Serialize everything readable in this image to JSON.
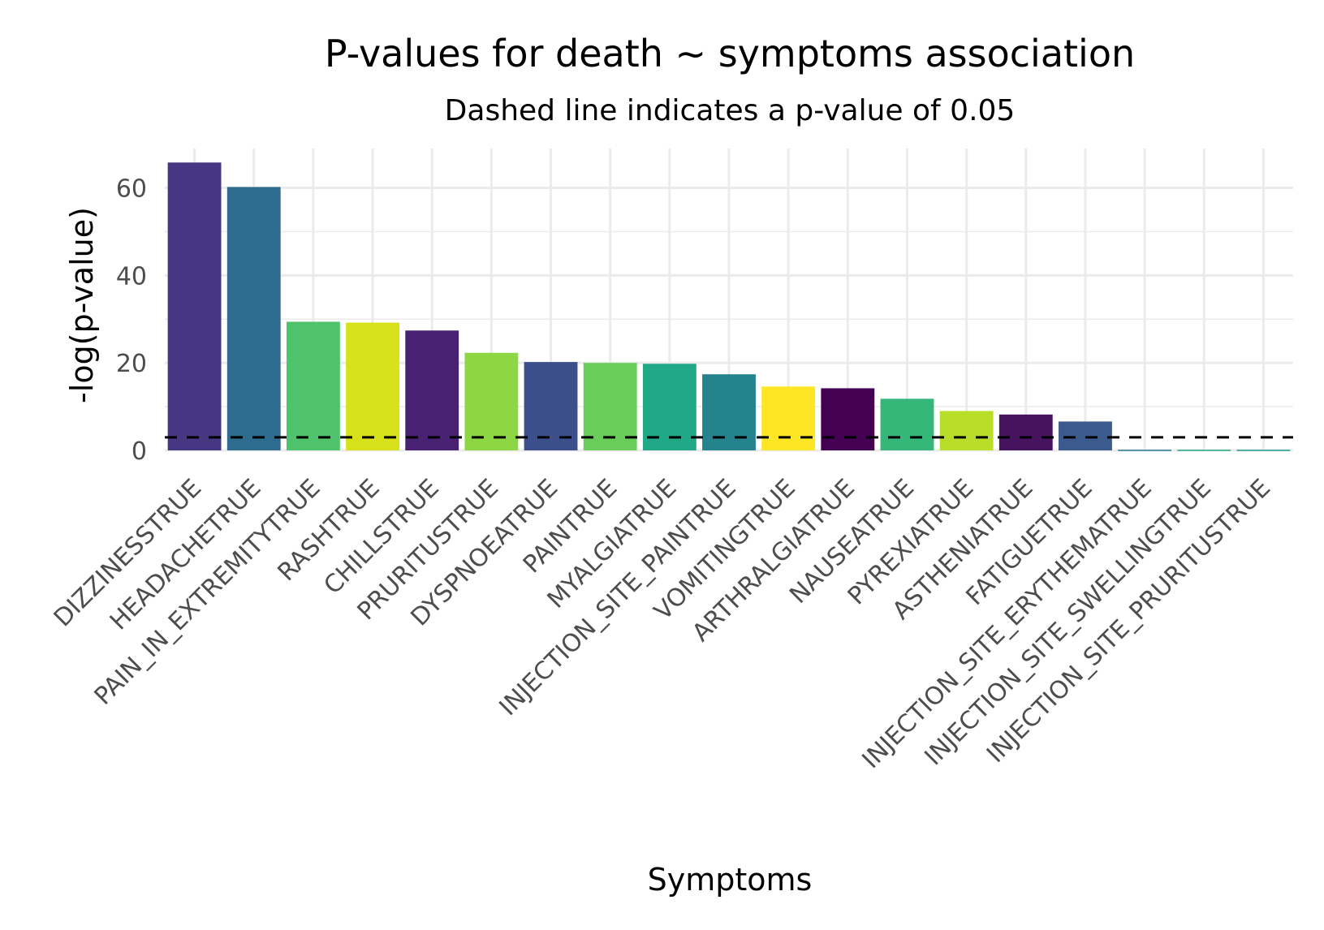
{
  "chart_data": {
    "type": "bar",
    "title": "P-values for death ~ symptoms association",
    "subtitle": "Dashed line indicates a p-value of 0.05",
    "xlabel": "Symptoms",
    "ylabel": "-log(p-value)",
    "ylim": [
      0,
      69
    ],
    "yticks": [
      "0",
      "20",
      "40",
      "60"
    ],
    "grid": true,
    "legend": "none",
    "reference_line": {
      "value": 3.0,
      "style": "dashed",
      "color": "#000000"
    },
    "categories": [
      "DIZZINESSTRUE",
      "HEADACHETRUE",
      "PAIN_IN_EXTREMITYTRUE",
      "RASHTRUE",
      "CHILLSTRUE",
      "PRURITUSTRUE",
      "DYSPNOEATRUE",
      "PAINTRUE",
      "MYALGIATRUE",
      "INJECTION_SITE_PAINTRUE",
      "VOMITINGTRUE",
      "ARTHRALGIATRUE",
      "NAUSEATRUE",
      "PYREXIATRUE",
      "ASTHENIATRUE",
      "FATIGUETRUE",
      "INJECTION_SITE_ERYTHEMATRUE",
      "INJECTION_SITE_SWELLINGTRUE",
      "INJECTION_SITE_PRURITUSTRUE"
    ],
    "values": [
      65.8,
      60.2,
      29.4,
      29.2,
      27.4,
      22.3,
      20.2,
      20.0,
      19.8,
      17.4,
      14.6,
      14.2,
      11.8,
      9.0,
      8.2,
      6.6,
      0.15,
      0.15,
      0.15
    ],
    "colors": [
      "#453781",
      "#2d6c8e",
      "#4ec36b",
      "#d7e21a",
      "#482173",
      "#8dd644",
      "#3c4f8a",
      "#6acc5b",
      "#20a887",
      "#25838e",
      "#fde725",
      "#440154",
      "#35b779",
      "#b8de29",
      "#46135f",
      "#3b5a8d",
      "#2a788e",
      "#22a884",
      "#1f9a8a"
    ]
  }
}
